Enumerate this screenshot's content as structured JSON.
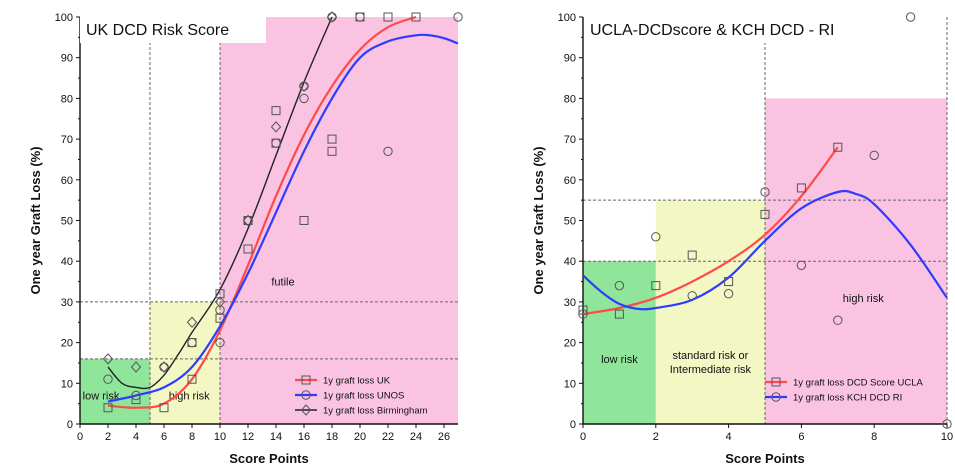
{
  "chart_data": [
    {
      "type": "scatter",
      "title": "UK DCD Risk Score",
      "xlabel": "Score Points",
      "ylabel": "One year Graft Loss (%)",
      "xlim": [
        0,
        27
      ],
      "ylim": [
        0,
        100
      ],
      "x_ticks": [
        "0",
        "2",
        "4",
        "6",
        "8",
        "10",
        "12",
        "14",
        "16",
        "18",
        "20",
        "22",
        "24",
        "26"
      ],
      "y_ticks": [
        "0",
        "10",
        "20",
        "30",
        "40",
        "50",
        "60",
        "70",
        "80",
        "90",
        "100"
      ],
      "zones": [
        {
          "label": "low risk",
          "x": [
            0,
            5
          ],
          "y": [
            0,
            16
          ],
          "color": "#8fe69b"
        },
        {
          "label": "high risk",
          "x": [
            5,
            10
          ],
          "y": [
            0,
            30
          ],
          "color": "#f2f7c4"
        },
        {
          "label": "futile",
          "x": [
            10,
            27
          ],
          "y": [
            0,
            100
          ],
          "color": "#f9c3e1"
        }
      ],
      "ref_lines_x": [
        5,
        10
      ],
      "ref_lines_y": [
        16,
        30
      ],
      "series": [
        {
          "name": "1y graft loss UK",
          "marker": "square",
          "color": "#ff4a4a",
          "points": [
            [
              2,
              4
            ],
            [
              4,
              6
            ],
            [
              6,
              4
            ],
            [
              8,
              11
            ],
            [
              8,
              20
            ],
            [
              10,
              26
            ],
            [
              10,
              32
            ],
            [
              12,
              43
            ],
            [
              12,
              50
            ],
            [
              14,
              77
            ],
            [
              14,
              69
            ],
            [
              16,
              50
            ],
            [
              18,
              70
            ],
            [
              18,
              67
            ],
            [
              20,
              100
            ],
            [
              22,
              100
            ],
            [
              24,
              100
            ]
          ],
          "curve": [
            [
              2,
              4.5
            ],
            [
              4,
              4
            ],
            [
              6,
              5
            ],
            [
              8,
              11
            ],
            [
              10,
              23
            ],
            [
              12,
              39
            ],
            [
              14,
              56
            ],
            [
              16,
              71
            ],
            [
              18,
              83
            ],
            [
              20,
              92
            ],
            [
              22,
              97.5
            ],
            [
              24,
              100
            ]
          ]
        },
        {
          "name": "1y graft loss UNOS",
          "marker": "circle",
          "color": "#2f3cff",
          "points": [
            [
              2,
              11
            ],
            [
              4,
              7
            ],
            [
              6,
              14
            ],
            [
              8,
              20
            ],
            [
              10,
              20
            ],
            [
              10,
              28
            ],
            [
              12,
              50
            ],
            [
              14,
              69
            ],
            [
              16,
              83
            ],
            [
              16,
              80
            ],
            [
              18,
              100
            ],
            [
              20,
              100
            ],
            [
              22,
              67
            ],
            [
              27,
              100
            ]
          ],
          "curve": [
            [
              2,
              5.5
            ],
            [
              4,
              7
            ],
            [
              6,
              9
            ],
            [
              8,
              14
            ],
            [
              10,
              24
            ],
            [
              12,
              37
            ],
            [
              14,
              52
            ],
            [
              16,
              67
            ],
            [
              18,
              80
            ],
            [
              20,
              90
            ],
            [
              22,
              94
            ],
            [
              24,
              95.5
            ],
            [
              25,
              95.5
            ],
            [
              26,
              94.8
            ],
            [
              27,
              93.5
            ]
          ]
        },
        {
          "name": "1y graft loss Birmingham",
          "marker": "diamond",
          "color": "#222222",
          "points": [
            [
              2,
              16
            ],
            [
              4,
              14
            ],
            [
              6,
              14
            ],
            [
              8,
              25
            ],
            [
              10,
              30
            ],
            [
              12,
              50
            ],
            [
              14,
              73
            ],
            [
              16,
              83
            ],
            [
              18,
              100
            ]
          ],
          "curve": [
            [
              2,
              14
            ],
            [
              3,
              10
            ],
            [
              4,
              9
            ],
            [
              5,
              9
            ],
            [
              6,
              12
            ],
            [
              7,
              17
            ],
            [
              8,
              22.5
            ],
            [
              10,
              33
            ],
            [
              12,
              48
            ],
            [
              14,
              66
            ],
            [
              16,
              84
            ],
            [
              18,
              100
            ]
          ]
        }
      ],
      "legend": "bottom-right"
    },
    {
      "type": "scatter",
      "title": "UCLA-DCDscore & KCH DCD - RI",
      "xlabel": "Score Points",
      "ylabel": "One year Graft Loss (%)",
      "xlim": [
        0,
        10
      ],
      "ylim": [
        0,
        100
      ],
      "x_ticks": [
        "0",
        "2",
        "4",
        "6",
        "8",
        "10"
      ],
      "y_ticks": [
        "0",
        "10",
        "20",
        "30",
        "40",
        "50",
        "60",
        "70",
        "80",
        "90",
        "100"
      ],
      "zones": [
        {
          "label": "low risk",
          "x": [
            0,
            2
          ],
          "y": [
            0,
            40
          ],
          "color": "#8fe69b"
        },
        {
          "label": "standard risk or Intermediate risk",
          "x": [
            2,
            5
          ],
          "y": [
            0,
            55
          ],
          "color": "#f2f7c4"
        },
        {
          "label": "high risk",
          "x": [
            5,
            10
          ],
          "y": [
            0,
            80
          ],
          "color": "#f9c3e1"
        }
      ],
      "ref_lines_x": [
        5,
        10
      ],
      "ref_lines_y": [
        40,
        55
      ],
      "series": [
        {
          "name": "1y graft loss DCD Score UCLA",
          "marker": "square",
          "color": "#ff4a4a",
          "points": [
            [
              0,
              28
            ],
            [
              1,
              27
            ],
            [
              2,
              34
            ],
            [
              3,
              41.5
            ],
            [
              4,
              35
            ],
            [
              5,
              51.5
            ],
            [
              6,
              58
            ],
            [
              7,
              68
            ]
          ],
          "curve": [
            [
              0,
              27
            ],
            [
              1,
              28.5
            ],
            [
              2,
              31
            ],
            [
              3,
              35
            ],
            [
              4,
              40
            ],
            [
              5,
              46.5
            ],
            [
              6,
              56
            ],
            [
              7,
              68
            ]
          ]
        },
        {
          "name": "1y graft loss KCH DCD RI",
          "marker": "circle",
          "color": "#2f3cff",
          "points": [
            [
              0,
              27
            ],
            [
              1,
              34
            ],
            [
              2,
              46
            ],
            [
              3,
              31.5
            ],
            [
              4,
              32
            ],
            [
              5,
              57
            ],
            [
              6,
              39
            ],
            [
              7,
              25.5
            ],
            [
              8,
              66
            ],
            [
              9,
              100
            ],
            [
              10,
              0
            ]
          ],
          "curve": [
            [
              0,
              36.5
            ],
            [
              0.5,
              32.5
            ],
            [
              1,
              29.5
            ],
            [
              1.5,
              28.3
            ],
            [
              2,
              28.5
            ],
            [
              3,
              30.5
            ],
            [
              4,
              36
            ],
            [
              5,
              45
            ],
            [
              6,
              53
            ],
            [
              7,
              57
            ],
            [
              7.5,
              56.5
            ],
            [
              8,
              54
            ],
            [
              9,
              44
            ],
            [
              10,
              31
            ]
          ]
        }
      ],
      "legend": "bottom-right"
    }
  ]
}
